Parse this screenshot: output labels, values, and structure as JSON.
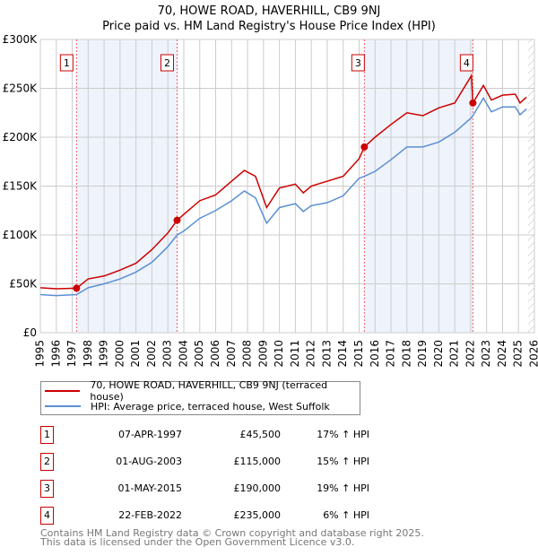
{
  "chart_data": {
    "type": "line",
    "title": "70, HOWE ROAD, HAVERHILL, CB9 9NJ",
    "subtitle": "Price paid vs. HM Land Registry's House Price Index (HPI)",
    "xlim": [
      1995,
      2026
    ],
    "ylim": [
      0,
      300000
    ],
    "x_ticks": [
      "1995",
      "1996",
      "1997",
      "1998",
      "1999",
      "2000",
      "2001",
      "2002",
      "2003",
      "2004",
      "2005",
      "2006",
      "2007",
      "2008",
      "2009",
      "2010",
      "2011",
      "2012",
      "2013",
      "2014",
      "2015",
      "2016",
      "2017",
      "2018",
      "2019",
      "2020",
      "2021",
      "2022",
      "2023",
      "2024",
      "2025",
      "2026"
    ],
    "y_ticks": [
      {
        "v": 0,
        "label": "£0"
      },
      {
        "v": 50000,
        "label": "£50K"
      },
      {
        "v": 100000,
        "label": "£100K"
      },
      {
        "v": 150000,
        "label": "£150K"
      },
      {
        "v": 200000,
        "label": "£200K"
      },
      {
        "v": 250000,
        "label": "£250K"
      },
      {
        "v": 300000,
        "label": "£300K"
      }
    ],
    "grid": true,
    "series": [
      {
        "name": "70, HOWE ROAD, HAVERHILL, CB9 9NJ (terraced house)",
        "color": "#cc0000",
        "x": [
          1995,
          1996,
          1997.27,
          1998,
          1999,
          2000,
          2001,
          2002,
          2003,
          2003.58,
          2004,
          2005,
          2006,
          2007,
          2007.8,
          2008.5,
          2009.2,
          2010,
          2011,
          2011.5,
          2012,
          2013,
          2014,
          2015,
          2015.33,
          2016,
          2017,
          2018,
          2019,
          2020,
          2021,
          2022.05,
          2022.14,
          2022.8,
          2023.3,
          2024,
          2024.8,
          2025.1,
          2025.5
        ],
        "y": [
          46000,
          45000,
          45500,
          55000,
          58000,
          64000,
          71000,
          85000,
          102000,
          115000,
          121000,
          135000,
          141000,
          155000,
          166000,
          160000,
          128000,
          148000,
          152000,
          143000,
          150000,
          155000,
          160000,
          178000,
          190000,
          200000,
          213000,
          225000,
          222000,
          230000,
          235000,
          263000,
          235000,
          253000,
          238000,
          243000,
          244000,
          235000,
          241000
        ]
      },
      {
        "name": "HPI: Average price, terraced house, West Suffolk",
        "color": "#5b8fd4",
        "x": [
          1995,
          1996,
          1997.27,
          1998,
          1999,
          2000,
          2001,
          2002,
          2003,
          2003.58,
          2004,
          2005,
          2006,
          2007,
          2007.8,
          2008.5,
          2009.2,
          2010,
          2011,
          2011.5,
          2012,
          2013,
          2014,
          2015,
          2015.33,
          2016,
          2017,
          2018,
          2019,
          2020,
          2021,
          2022.05,
          2022.14,
          2022.8,
          2023.3,
          2024,
          2024.8,
          2025.1,
          2025.5
        ],
        "y": [
          39000,
          38000,
          39000,
          46000,
          50000,
          55000,
          62000,
          72000,
          88000,
          100000,
          104000,
          117000,
          125000,
          135000,
          145000,
          138000,
          112000,
          128000,
          132000,
          124000,
          130000,
          133000,
          140000,
          158000,
          160000,
          165000,
          177000,
          190000,
          190000,
          195000,
          205000,
          220000,
          222000,
          240000,
          226000,
          231000,
          231000,
          223000,
          229000
        ]
      }
    ],
    "sales": [
      {
        "n": "1",
        "date": "07-APR-1997",
        "price": "£45,500",
        "hpi": "17% ↑ HPI",
        "x": 1997.27,
        "y": 45500
      },
      {
        "n": "2",
        "date": "01-AUG-2003",
        "price": "£115,000",
        "hpi": "15% ↑ HPI",
        "x": 2003.58,
        "y": 115000
      },
      {
        "n": "3",
        "date": "01-MAY-2015",
        "price": "£190,000",
        "hpi": "19% ↑ HPI",
        "x": 2015.33,
        "y": 190000
      },
      {
        "n": "4",
        "date": "22-FEB-2022",
        "price": "£235,000",
        "hpi": "6% ↑ HPI",
        "x": 2022.14,
        "y": 235000
      }
    ],
    "shaded_ranges": [
      [
        1997.27,
        2003.58
      ],
      [
        2015.33,
        2022.14
      ]
    ],
    "forecast_hatch_from": 2025.6,
    "legend_position": "below"
  },
  "footer": {
    "line1": "Contains HM Land Registry data © Crown copyright and database right 2025.",
    "line2": "This data is licensed under the Open Government Licence v3.0."
  }
}
